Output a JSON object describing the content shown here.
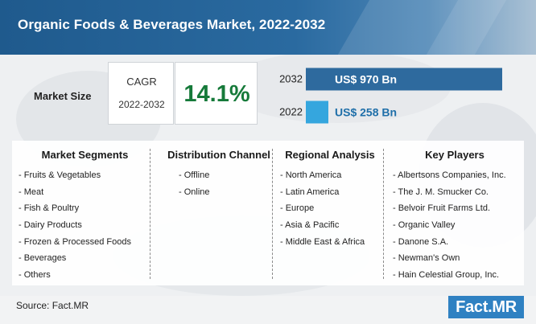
{
  "title": "Organic Foods & Beverages Market, 2022-2032",
  "market_size_label": "Market Size",
  "cagr": {
    "label": "CAGR",
    "years": "2022-2032",
    "value": "14.1%"
  },
  "chart_data": {
    "type": "bar",
    "orientation": "horizontal",
    "categories": [
      "2032",
      "2022"
    ],
    "values": [
      970,
      258
    ],
    "value_labels": [
      "US$ 970 Bn",
      "US$ 258 Bn"
    ],
    "colors": [
      "#2e6a9e",
      "#35a6de"
    ]
  },
  "columns": [
    {
      "title": "Market Segments",
      "items": [
        "- Fruits & Vegetables",
        "- Meat",
        "- Fish & Poultry",
        "- Dairy Products",
        "- Frozen & Processed Foods",
        "- Beverages",
        "- Others"
      ]
    },
    {
      "title": "Distribution Channel",
      "items": [
        "- Offline",
        "- Online"
      ]
    },
    {
      "title": "Regional Analysis",
      "items": [
        "- North America",
        "- Latin America",
        "- Europe",
        "- Asia & Pacific",
        "- Middle East & Africa"
      ]
    },
    {
      "title": "Key Players",
      "items": [
        "- Albertsons Companies, Inc.",
        "- The J. M. Smucker Co.",
        "- Belvoir Fruit Farms Ltd.",
        "- Organic Valley",
        "- Danone S.A.",
        "- Newman's Own",
        "- Hain Celestial Group, Inc."
      ]
    }
  ],
  "source": "Source: Fact.MR",
  "logo": "Fact.MR"
}
